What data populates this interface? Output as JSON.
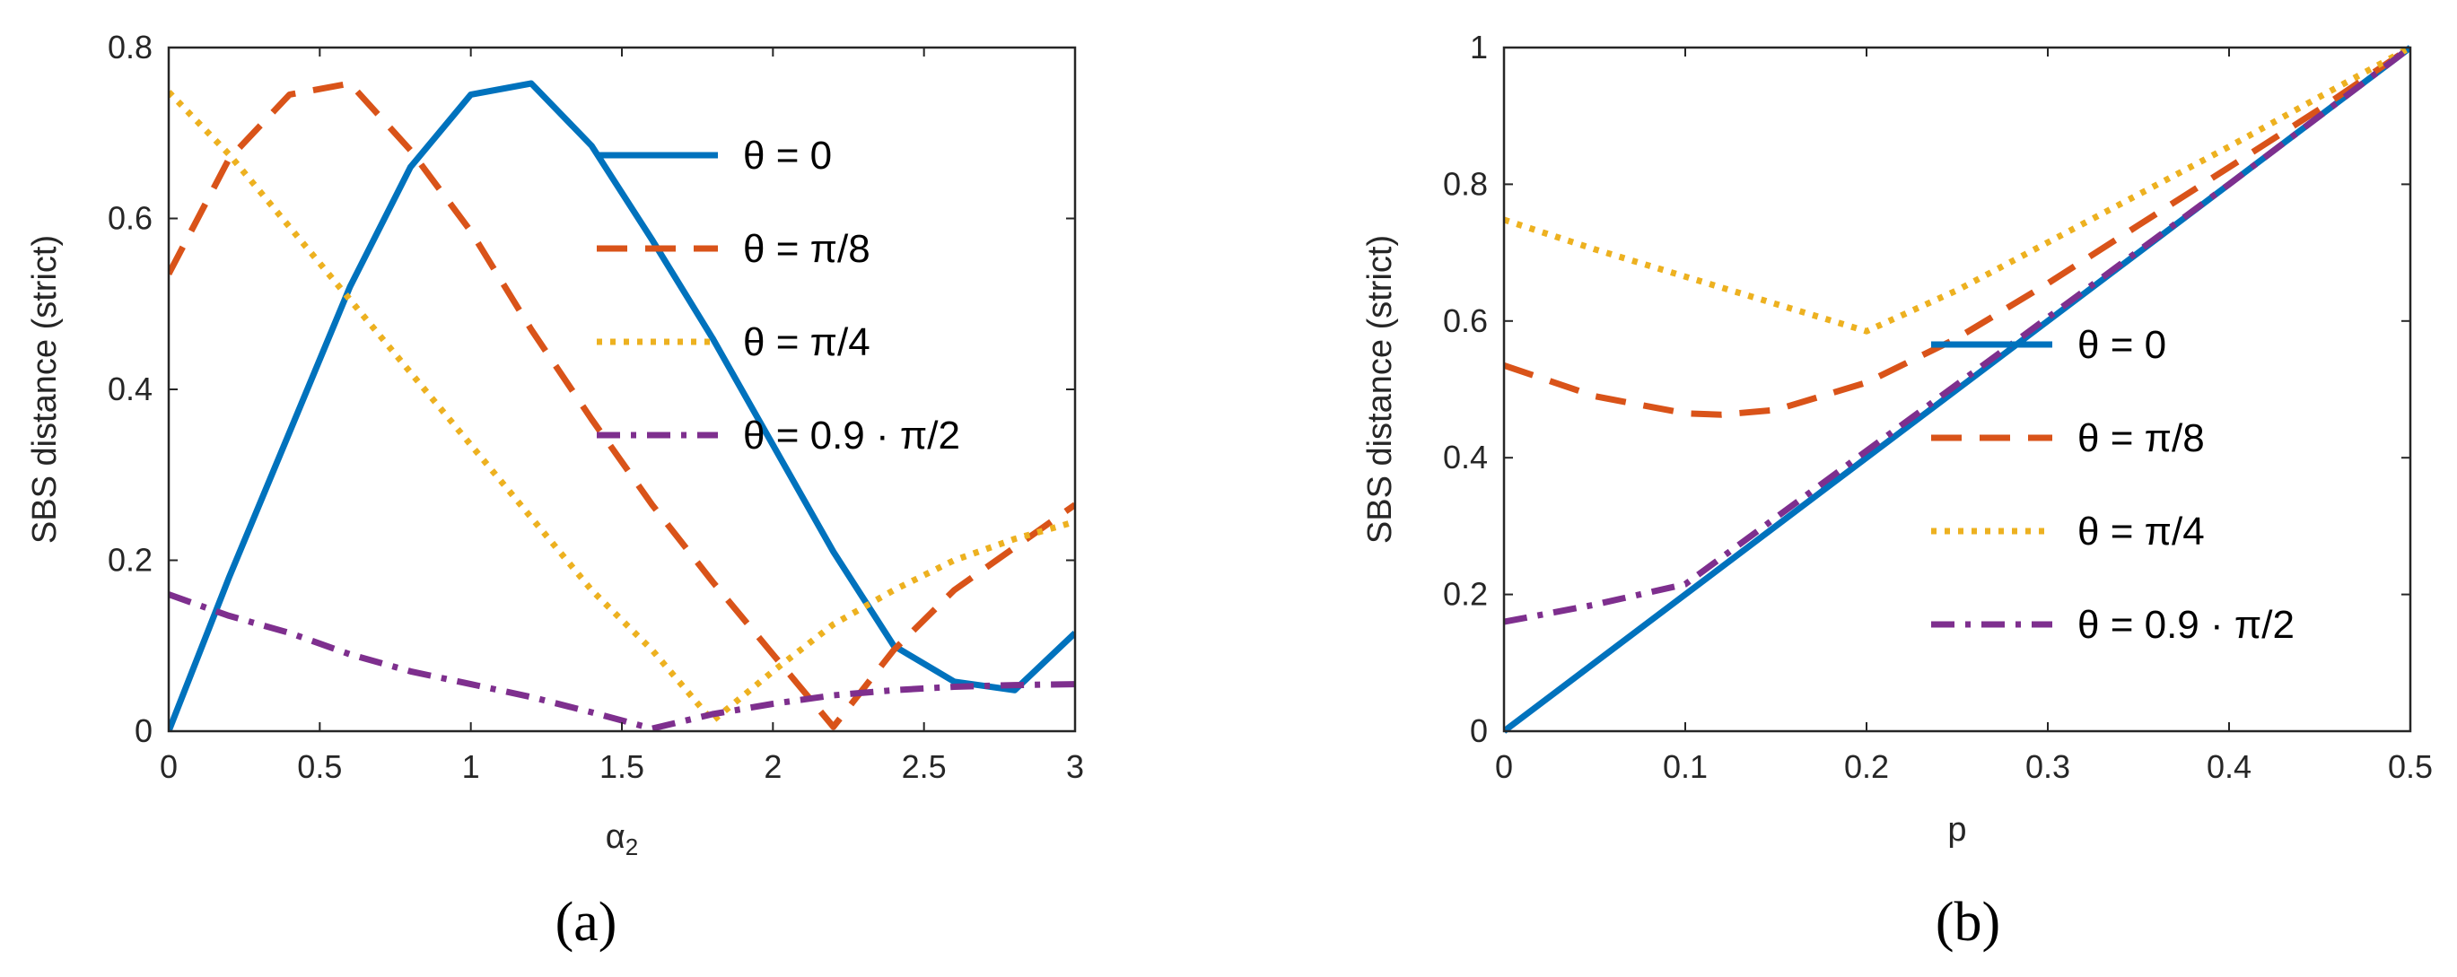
{
  "colors": {
    "theta_0": "#0072BD",
    "theta_pi8": "#D95319",
    "theta_pi4": "#EDB120",
    "theta_09pi2": "#7E2F8E",
    "axis": "#262626"
  },
  "chart_data": [
    {
      "type": "line",
      "caption": "(a)",
      "xlabel": "α₂",
      "ylabel": "SBS distance (strict)",
      "xlim": [
        0,
        3
      ],
      "ylim": [
        0,
        0.8
      ],
      "xticks": [
        0,
        0.5,
        1,
        1.5,
        2,
        2.5,
        3
      ],
      "xtick_labels": [
        "0",
        "0.5",
        "1",
        "1.5",
        "2",
        "2.5",
        "3"
      ],
      "yticks": [
        0,
        0.2,
        0.4,
        0.6,
        0.8
      ],
      "ytick_labels": [
        "0",
        "0.2",
        "0.4",
        "0.6",
        "0.8"
      ],
      "legend_position": "top-right",
      "series": [
        {
          "name": "θ = 0",
          "style": "solid",
          "color": "#0072BD",
          "x": [
            0,
            0.2,
            0.4,
            0.6,
            0.8,
            1.0,
            1.2,
            1.4,
            1.6,
            1.8,
            2.0,
            2.2,
            2.4,
            2.6,
            2.8,
            3.0
          ],
          "y": [
            0,
            0.18,
            0.35,
            0.52,
            0.66,
            0.745,
            0.758,
            0.685,
            0.575,
            0.46,
            0.335,
            0.21,
            0.1,
            0.058,
            0.048,
            0.115
          ]
        },
        {
          "name": "θ = π/8",
          "style": "dashed",
          "color": "#D95319",
          "x": [
            0,
            0.2,
            0.4,
            0.6,
            0.8,
            1.0,
            1.2,
            1.4,
            1.6,
            1.8,
            2.0,
            2.2,
            2.4,
            2.6,
            2.8,
            3.0
          ],
          "y": [
            0.535,
            0.67,
            0.745,
            0.758,
            0.68,
            0.585,
            0.47,
            0.365,
            0.265,
            0.175,
            0.09,
            0.005,
            0.095,
            0.165,
            0.215,
            0.265
          ]
        },
        {
          "name": "θ = π/4",
          "style": "dotted",
          "color": "#EDB120",
          "x": [
            0,
            0.2,
            0.4,
            0.6,
            0.8,
            1.0,
            1.2,
            1.4,
            1.5,
            1.6,
            1.8,
            2.0,
            2.2,
            2.4,
            2.6,
            2.8,
            3.0
          ],
          "y": [
            0.748,
            0.675,
            0.59,
            0.505,
            0.42,
            0.335,
            0.25,
            0.165,
            0.13,
            0.095,
            0.012,
            0.07,
            0.125,
            0.165,
            0.2,
            0.225,
            0.245
          ]
        },
        {
          "name": "θ = 0.9 · π/2",
          "style": "dashdot",
          "color": "#7E2F8E",
          "x": [
            0,
            0.2,
            0.4,
            0.6,
            0.8,
            1.0,
            1.2,
            1.4,
            1.6,
            1.8,
            2.0,
            2.2,
            2.4,
            2.6,
            2.8,
            3.0
          ],
          "y": [
            0.16,
            0.135,
            0.115,
            0.09,
            0.07,
            0.055,
            0.04,
            0.022,
            0.003,
            0.02,
            0.032,
            0.042,
            0.048,
            0.052,
            0.054,
            0.055
          ]
        }
      ]
    },
    {
      "type": "line",
      "caption": "(b)",
      "xlabel": "p",
      "ylabel": "SBS distance (strict)",
      "xlim": [
        0,
        0.5
      ],
      "ylim": [
        0,
        1
      ],
      "xticks": [
        0,
        0.1,
        0.2,
        0.3,
        0.4,
        0.5
      ],
      "xtick_labels": [
        "0",
        "0.1",
        "0.2",
        "0.3",
        "0.4",
        "0.5"
      ],
      "yticks": [
        0,
        0.2,
        0.4,
        0.6,
        0.8,
        1
      ],
      "ytick_labels": [
        "0",
        "0.2",
        "0.4",
        "0.6",
        "0.8",
        "1"
      ],
      "legend_position": "center-right",
      "series": [
        {
          "name": "θ = 0",
          "style": "solid",
          "color": "#0072BD",
          "x": [
            0,
            0.5
          ],
          "y": [
            0,
            1
          ]
        },
        {
          "name": "θ = π/8",
          "style": "dashed",
          "color": "#D95319",
          "x": [
            0,
            0.05,
            0.1,
            0.12,
            0.15,
            0.2,
            0.25,
            0.3,
            0.35,
            0.4,
            0.45,
            0.5
          ],
          "y": [
            0.535,
            0.49,
            0.465,
            0.463,
            0.47,
            0.51,
            0.575,
            0.655,
            0.74,
            0.825,
            0.91,
            1.0
          ]
        },
        {
          "name": "θ = π/4",
          "style": "dotted",
          "color": "#EDB120",
          "x": [
            0,
            0.05,
            0.1,
            0.15,
            0.2,
            0.25,
            0.3,
            0.35,
            0.4,
            0.45,
            0.5
          ],
          "y": [
            0.748,
            0.705,
            0.665,
            0.625,
            0.585,
            0.645,
            0.715,
            0.785,
            0.855,
            0.928,
            1.0
          ]
        },
        {
          "name": "θ = 0.9 · π/2",
          "style": "dashdot",
          "color": "#7E2F8E",
          "x": [
            0,
            0.05,
            0.1,
            0.2,
            0.3,
            0.4,
            0.5
          ],
          "y": [
            0.16,
            0.185,
            0.215,
            0.41,
            0.605,
            0.8,
            1.0
          ]
        }
      ]
    }
  ]
}
